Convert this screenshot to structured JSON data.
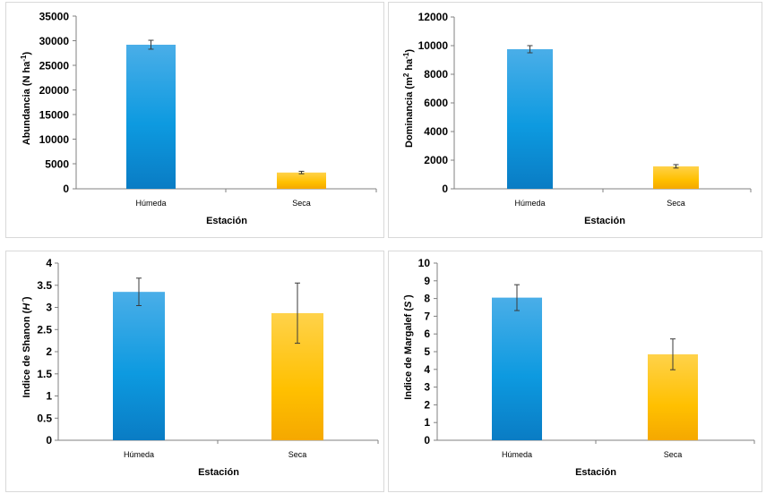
{
  "colors": {
    "humeda": "#2f9fdf",
    "seca": "#ffc000"
  },
  "chart_data": [
    {
      "type": "bar",
      "ylabel_parts": [
        "Abundancia (N ha",
        "-1",
        ")"
      ],
      "xlabel": "Estación",
      "categories": [
        "Húmeda",
        "Seca"
      ],
      "values": [
        29200,
        3300
      ],
      "errors": [
        900,
        250
      ],
      "ylim": [
        0,
        35000
      ],
      "yticks": [
        "0",
        "5000",
        "10000",
        "15000",
        "20000",
        "25000",
        "30000",
        "35000"
      ]
    },
    {
      "type": "bar",
      "ylabel_parts": [
        "Dominancia (m",
        "2",
        " ha",
        "-1",
        ")"
      ],
      "xlabel": "Estación",
      "categories": [
        "Húmeda",
        "Seca"
      ],
      "values": [
        9750,
        1570
      ],
      "errors": [
        250,
        120
      ],
      "ylim": [
        0,
        12000
      ],
      "yticks": [
        "0",
        "2000",
        "4000",
        "6000",
        "8000",
        "10000",
        "12000"
      ]
    },
    {
      "type": "bar",
      "ylabel_parts": [
        "Indice de Shanon (",
        "H´",
        ")"
      ],
      "xlabel": "Estación",
      "categories": [
        "Húmeda",
        "Seca"
      ],
      "values": [
        3.35,
        2.87
      ],
      "errors": [
        0.31,
        0.68
      ],
      "ylim": [
        0,
        4
      ],
      "yticks": [
        "0",
        "0.5",
        "1",
        "1.5",
        "2",
        "2.5",
        "3",
        "3.5",
        "4"
      ]
    },
    {
      "type": "bar",
      "ylabel_parts": [
        "Indice de Margalef (",
        "S´",
        ")"
      ],
      "xlabel": "Estación",
      "categories": [
        "Húmeda",
        "Seca"
      ],
      "values": [
        8.05,
        4.85
      ],
      "errors": [
        0.73,
        0.87
      ],
      "ylim": [
        0,
        10
      ],
      "yticks": [
        "0",
        "1",
        "2",
        "3",
        "4",
        "5",
        "6",
        "7",
        "8",
        "9",
        "10"
      ]
    }
  ]
}
